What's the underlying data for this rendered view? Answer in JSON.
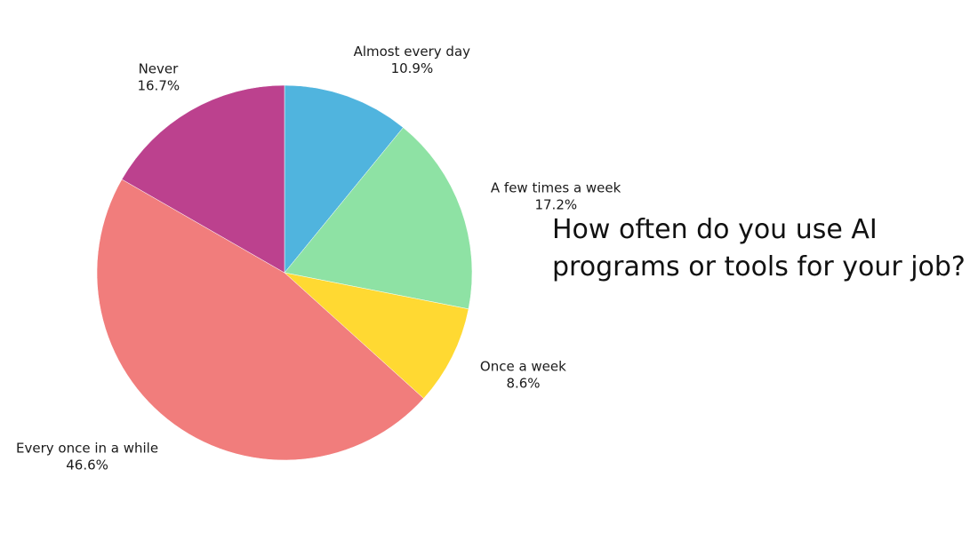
{
  "chart_data": {
    "type": "pie",
    "title": "How often do you use AI\nprograms or tools for your job?",
    "start_angle_deg": 0,
    "direction": "clockwise",
    "slices": [
      {
        "label": "Almost every day",
        "value": 10.9,
        "value_label": "10.9%",
        "color": "#50B4DE"
      },
      {
        "label": "A few times a week",
        "value": 17.2,
        "value_label": "17.2%",
        "color": "#8EE2A4"
      },
      {
        "label": "Once a week",
        "value": 8.6,
        "value_label": "8.6%",
        "color": "#FFD932"
      },
      {
        "label": "Every once in a while",
        "value": 46.6,
        "value_label": "46.6%",
        "color": "#F17D7C"
      },
      {
        "label": "Never",
        "value": 16.7,
        "value_label": "16.7%",
        "color": "#BC418E"
      }
    ]
  }
}
